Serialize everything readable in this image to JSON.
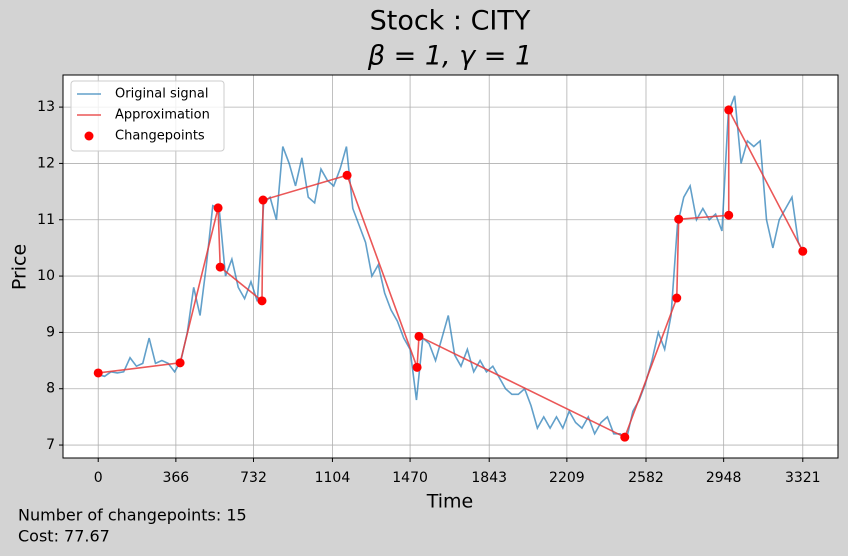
{
  "chart_data": {
    "type": "line",
    "title": "Stock : CITY",
    "subtitle": "β = 1, γ = 1",
    "x_label": "Time",
    "y_label": "Price",
    "footer": [
      "Number of changepoints: 15",
      "Cost: 77.67"
    ],
    "legend": "upper left",
    "grid": true,
    "xlim": [
      -166,
      3487
    ],
    "ylim": [
      6.77,
      13.57
    ],
    "xticks": [
      0,
      366,
      732,
      1104,
      1470,
      1843,
      2209,
      2582,
      2948,
      3321
    ],
    "yticks": [
      7,
      8,
      9,
      10,
      11,
      12,
      13
    ],
    "series": [
      {
        "name": "Original signal",
        "color": "#1f77b4",
        "style": "line",
        "x": [
          0,
          30,
          60,
          90,
          120,
          150,
          180,
          210,
          240,
          270,
          300,
          330,
          360,
          390,
          420,
          450,
          480,
          510,
          540,
          570,
          600,
          630,
          660,
          690,
          720,
          750,
          780,
          810,
          840,
          870,
          900,
          930,
          960,
          990,
          1020,
          1050,
          1080,
          1110,
          1140,
          1170,
          1200,
          1230,
          1260,
          1290,
          1320,
          1350,
          1380,
          1410,
          1440,
          1470,
          1500,
          1530,
          1560,
          1590,
          1620,
          1650,
          1680,
          1710,
          1740,
          1770,
          1800,
          1830,
          1860,
          1890,
          1920,
          1950,
          1980,
          2010,
          2040,
          2070,
          2100,
          2130,
          2160,
          2190,
          2220,
          2250,
          2280,
          2310,
          2340,
          2370,
          2400,
          2430,
          2460,
          2490,
          2520,
          2550,
          2580,
          2610,
          2640,
          2670,
          2700,
          2730,
          2760,
          2790,
          2820,
          2850,
          2880,
          2910,
          2940,
          2970,
          3000,
          3030,
          3060,
          3090,
          3120,
          3150,
          3180,
          3210,
          3240,
          3270,
          3300,
          3321
        ],
        "values": [
          8.25,
          8.22,
          8.3,
          8.28,
          8.3,
          8.55,
          8.4,
          8.45,
          8.9,
          8.45,
          8.5,
          8.45,
          8.3,
          8.5,
          9.0,
          9.8,
          9.3,
          10.2,
          11.25,
          11.2,
          10.0,
          10.3,
          9.8,
          9.6,
          9.9,
          9.55,
          11.3,
          11.4,
          11.0,
          12.3,
          12.0,
          11.6,
          12.1,
          11.4,
          11.3,
          11.9,
          11.7,
          11.6,
          11.9,
          12.3,
          11.2,
          10.9,
          10.6,
          10.0,
          10.2,
          9.7,
          9.4,
          9.2,
          8.9,
          8.7,
          7.8,
          8.9,
          8.8,
          8.5,
          8.9,
          9.3,
          8.6,
          8.4,
          8.7,
          8.3,
          8.5,
          8.3,
          8.4,
          8.2,
          8.0,
          7.9,
          7.9,
          8.0,
          7.7,
          7.3,
          7.5,
          7.3,
          7.5,
          7.3,
          7.6,
          7.4,
          7.3,
          7.5,
          7.2,
          7.4,
          7.5,
          7.2,
          7.2,
          7.1,
          7.6,
          7.8,
          8.1,
          8.5,
          9.0,
          8.7,
          9.3,
          10.9,
          11.4,
          11.6,
          11.0,
          11.2,
          11.0,
          11.1,
          10.8,
          12.9,
          13.2,
          12.0,
          12.4,
          12.3,
          12.4,
          11.0,
          10.5,
          11.0,
          11.2,
          11.4,
          10.6,
          10.45
        ]
      },
      {
        "name": "Approximation",
        "color": "#e8393a",
        "style": "line",
        "x": [
          0,
          386,
          565,
          575,
          772,
          777,
          1173,
          1503,
          1512,
          2482,
          2727,
          2736,
          2972,
          2972,
          3321
        ],
        "values": [
          8.28,
          8.46,
          11.21,
          10.16,
          9.56,
          11.35,
          11.79,
          8.38,
          8.93,
          7.14,
          9.61,
          11.01,
          11.08,
          12.95,
          10.44
        ]
      },
      {
        "name": "Changepoints",
        "color": "#ff0000",
        "style": "points",
        "x": [
          0,
          386,
          565,
          575,
          772,
          777,
          1173,
          1503,
          1512,
          2482,
          2727,
          2736,
          2972,
          2972,
          3321
        ],
        "values": [
          8.28,
          8.46,
          11.21,
          10.16,
          9.56,
          11.35,
          11.79,
          8.38,
          8.93,
          7.14,
          9.61,
          11.01,
          11.08,
          12.95,
          10.44
        ]
      }
    ]
  }
}
